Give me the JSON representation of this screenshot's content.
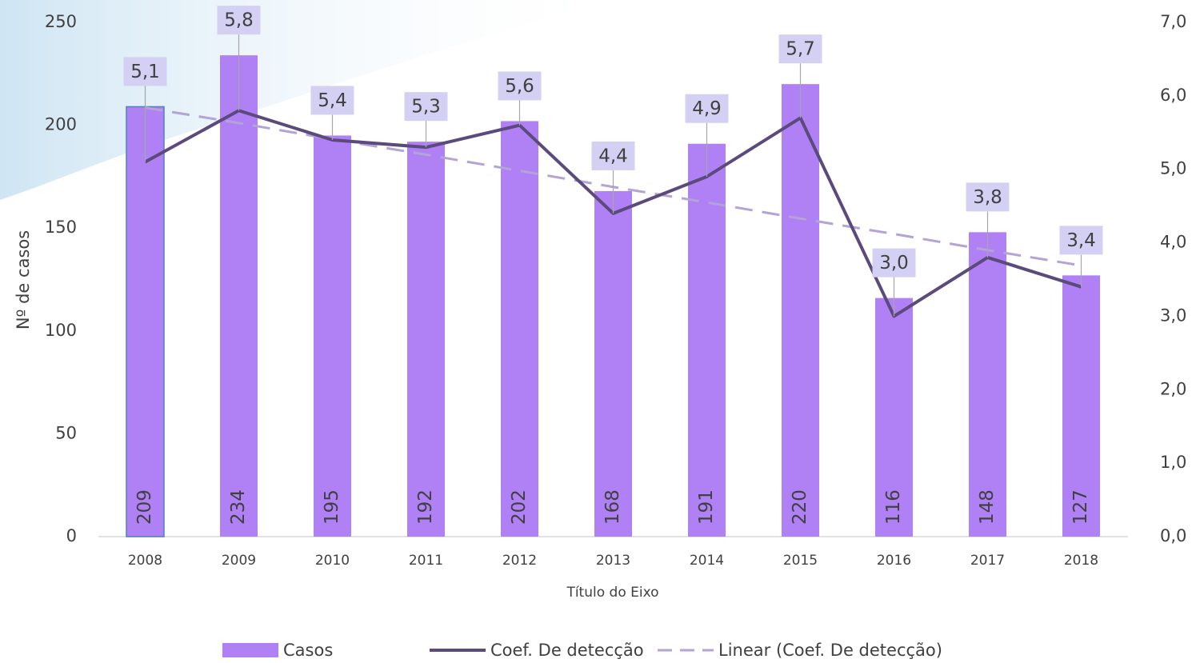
{
  "chart_data": {
    "type": "bar",
    "x_label": "Título do Eixo",
    "y_label": "Nº de casos",
    "categories": [
      "2008",
      "2009",
      "2010",
      "2011",
      "2012",
      "2013",
      "2014",
      "2015",
      "2016",
      "2017",
      "2018"
    ],
    "series": [
      {
        "name": "Casos",
        "type": "bar",
        "color": "#b080f5",
        "values": [
          209,
          234,
          195,
          192,
          202,
          168,
          191,
          220,
          116,
          148,
          127
        ]
      },
      {
        "name": "Coef. De detecção",
        "type": "line",
        "axis": "y2",
        "color": "#5b4a7c",
        "values": [
          5.1,
          5.8,
          5.4,
          5.3,
          5.6,
          4.4,
          4.9,
          5.7,
          3.0,
          3.8,
          3.4
        ],
        "value_labels": [
          "5,1",
          "5,8",
          "5,4",
          "5,3",
          "5,6",
          "4,4",
          "4,9",
          "5,7",
          "3,0",
          "3,8",
          "3,4"
        ]
      },
      {
        "name": "Linear (Coef. De detecção)",
        "type": "trend",
        "axis": "y2",
        "color": "#b3a3d6",
        "values": [
          5.84,
          5.63,
          5.41,
          5.2,
          4.98,
          4.76,
          4.55,
          4.33,
          4.12,
          3.9,
          3.69
        ]
      }
    ],
    "ylim": [
      0,
      250
    ],
    "yticks": [
      0,
      50,
      100,
      150,
      200,
      250
    ],
    "y2lim": [
      0,
      7
    ],
    "y2ticks": [
      {
        "value": 0,
        "label": "0,0"
      },
      {
        "value": 1,
        "label": "1,0"
      },
      {
        "value": 2,
        "label": "2,0"
      },
      {
        "value": 3,
        "label": "3,0"
      },
      {
        "value": 4,
        "label": "4,0"
      },
      {
        "value": 5,
        "label": "5,0"
      },
      {
        "value": 6,
        "label": "6,0"
      },
      {
        "value": 7,
        "label": "7,0"
      }
    ],
    "legend": "bottom"
  }
}
